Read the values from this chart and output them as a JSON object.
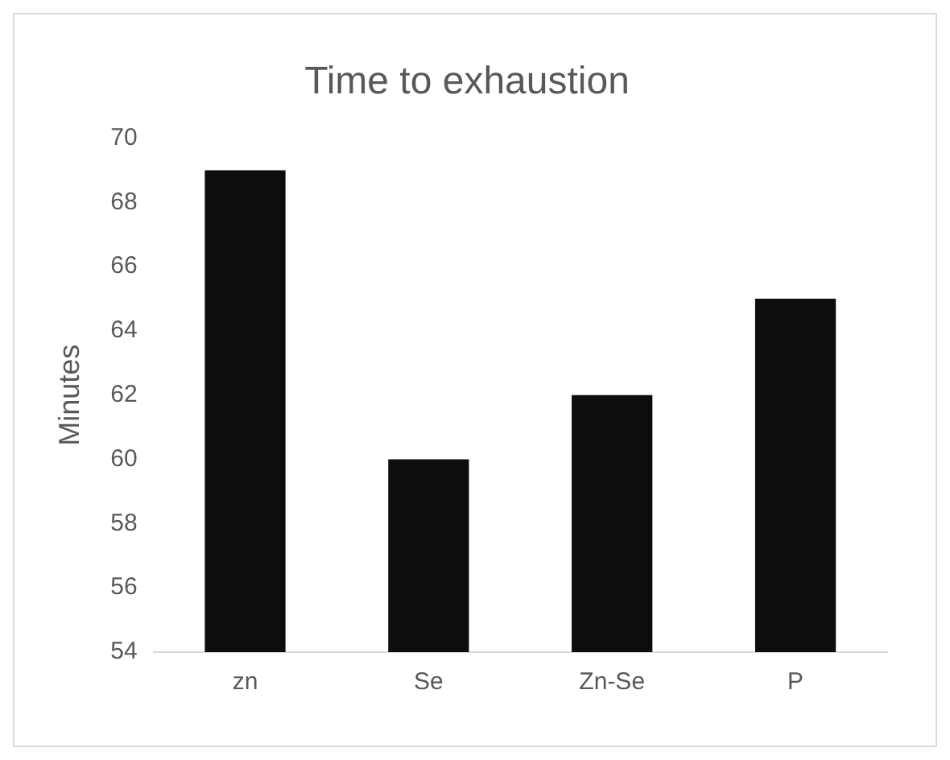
{
  "chart_data": {
    "type": "bar",
    "title": "Time to exhaustion",
    "ylabel": "Minutes",
    "categories": [
      "zn",
      "Se",
      "Zn-Se",
      "P"
    ],
    "values": [
      69,
      60,
      62,
      65
    ],
    "color": "#0d0d0d",
    "ylim": [
      54,
      70
    ],
    "yticks": [
      54,
      56,
      58,
      60,
      62,
      64,
      66,
      68,
      70
    ],
    "grid": false
  }
}
